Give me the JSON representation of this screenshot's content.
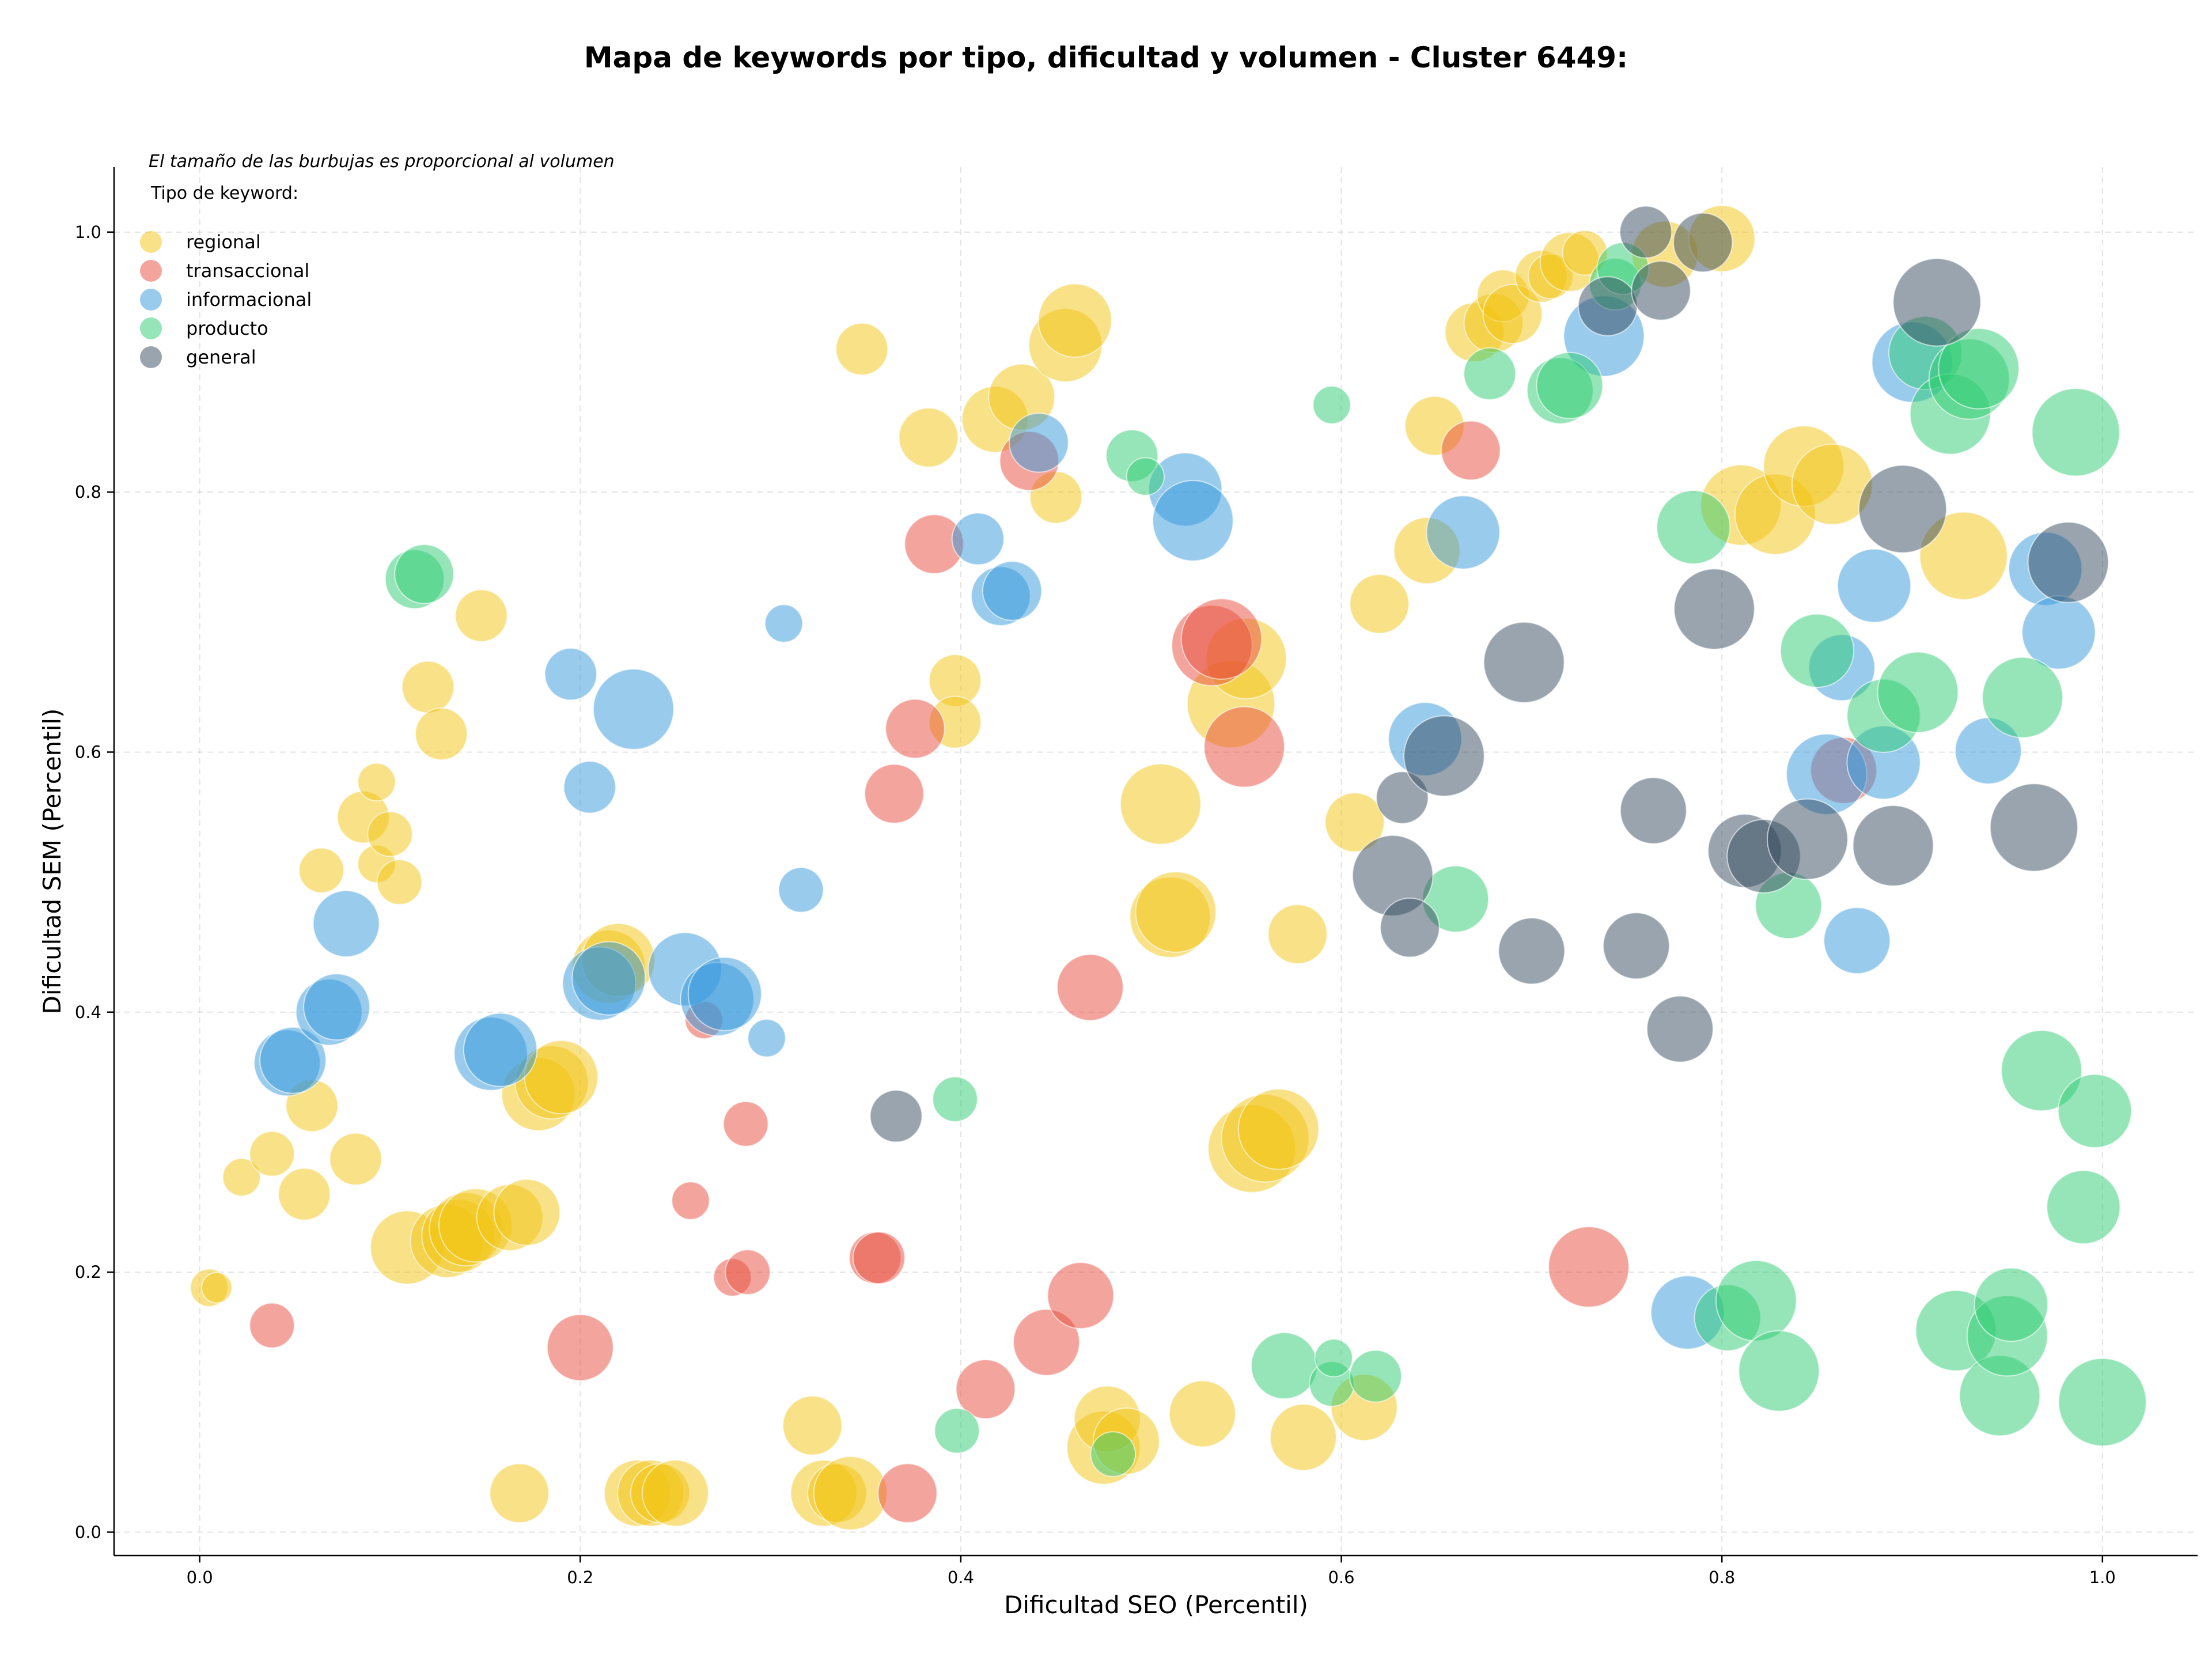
{
  "chart_data": {
    "type": "scatter",
    "title": "Mapa de keywords por tipo, dificultad y volumen - Cluster 6449:",
    "xlabel": "Dificultad SEO (Percentil)",
    "ylabel": "Dificultad SEM (Percentil)",
    "xlim": [
      -0.045,
      1.05
    ],
    "ylim": [
      -0.018,
      1.05
    ],
    "x_ticks": [
      0.0,
      0.2,
      0.4,
      0.6,
      0.8,
      1.0
    ],
    "y_ticks": [
      0.0,
      0.2,
      0.4,
      0.6,
      0.8,
      1.0
    ],
    "x_tick_labels": [
      "0.0",
      "0.2",
      "0.4",
      "0.6",
      "0.8",
      "1.0"
    ],
    "y_tick_labels": [
      "0.0",
      "0.2",
      "0.4",
      "0.6",
      "0.8",
      "1.0"
    ],
    "grid": true,
    "annotation": "El tamaño de las burbujas es proporcional al volumen",
    "legend_title": "Tipo de keyword:",
    "legend_position": "top-left",
    "series": [
      {
        "name": "regional",
        "color": "#f1c40f",
        "points": [
          [
            0.005,
            0.188,
            3
          ],
          [
            0.009,
            0.188,
            2
          ],
          [
            0.022,
            0.273,
            3
          ],
          [
            0.038,
            0.291,
            4
          ],
          [
            0.055,
            0.26,
            5
          ],
          [
            0.059,
            0.328,
            5
          ],
          [
            0.064,
            0.509,
            4
          ],
          [
            0.082,
            0.287,
            5
          ],
          [
            0.086,
            0.55,
            5
          ],
          [
            0.093,
            0.577,
            3
          ],
          [
            0.093,
            0.514,
            3
          ],
          [
            0.1,
            0.537,
            4
          ],
          [
            0.105,
            0.5,
            4
          ],
          [
            0.109,
            0.219,
            8
          ],
          [
            0.12,
            0.65,
            5
          ],
          [
            0.127,
            0.614,
            5
          ],
          [
            0.13,
            0.224,
            8
          ],
          [
            0.136,
            0.228,
            8
          ],
          [
            0.14,
            0.233,
            8
          ],
          [
            0.145,
            0.236,
            8
          ],
          [
            0.148,
            0.705,
            5
          ],
          [
            0.163,
            0.242,
            7
          ],
          [
            0.172,
            0.246,
            7
          ],
          [
            0.168,
            0.03,
            6
          ],
          [
            0.178,
            0.337,
            8
          ],
          [
            0.185,
            0.346,
            8
          ],
          [
            0.19,
            0.35,
            8
          ],
          [
            0.215,
            0.435,
            8
          ],
          [
            0.22,
            0.44,
            8
          ],
          [
            0.23,
            0.03,
            7
          ],
          [
            0.237,
            0.03,
            7
          ],
          [
            0.242,
            0.03,
            6
          ],
          [
            0.25,
            0.03,
            7
          ],
          [
            0.322,
            0.082,
            6
          ],
          [
            0.328,
            0.03,
            7
          ],
          [
            0.335,
            0.03,
            6
          ],
          [
            0.342,
            0.03,
            8
          ],
          [
            0.348,
            0.91,
            5
          ],
          [
            0.383,
            0.842,
            6
          ],
          [
            0.397,
            0.655,
            5
          ],
          [
            0.397,
            0.623,
            5
          ],
          [
            0.418,
            0.856,
            7
          ],
          [
            0.432,
            0.873,
            7
          ],
          [
            0.45,
            0.796,
            5
          ],
          [
            0.455,
            0.913,
            8
          ],
          [
            0.46,
            0.932,
            8
          ],
          [
            0.475,
            0.065,
            8
          ],
          [
            0.477,
            0.087,
            7
          ],
          [
            0.487,
            0.07,
            7
          ],
          [
            0.505,
            0.56,
            9
          ],
          [
            0.51,
            0.473,
            9
          ],
          [
            0.513,
            0.477,
            9
          ],
          [
            0.527,
            0.091,
            7
          ],
          [
            0.542,
            0.637,
            10
          ],
          [
            0.55,
            0.672,
            9
          ],
          [
            0.553,
            0.295,
            10
          ],
          [
            0.56,
            0.303,
            10
          ],
          [
            0.567,
            0.31,
            9
          ],
          [
            0.577,
            0.46,
            6
          ],
          [
            0.58,
            0.073,
            7
          ],
          [
            0.607,
            0.546,
            6
          ],
          [
            0.612,
            0.096,
            7
          ],
          [
            0.62,
            0.714,
            6
          ],
          [
            0.645,
            0.755,
            7
          ],
          [
            0.649,
            0.851,
            6
          ],
          [
            0.67,
            0.923,
            6
          ],
          [
            0.68,
            0.93,
            6
          ],
          [
            0.685,
            0.951,
            5
          ],
          [
            0.69,
            0.937,
            6
          ],
          [
            0.705,
            0.966,
            5
          ],
          [
            0.71,
            0.966,
            4
          ],
          [
            0.72,
            0.977,
            6
          ],
          [
            0.728,
            0.984,
            4
          ],
          [
            0.77,
            0.983,
            7
          ],
          [
            0.8,
            0.995,
            7
          ],
          [
            0.81,
            0.79,
            9
          ],
          [
            0.828,
            0.783,
            9
          ],
          [
            0.843,
            0.82,
            9
          ],
          [
            0.858,
            0.806,
            9
          ],
          [
            0.927,
            0.751,
            10
          ]
        ]
      },
      {
        "name": "transaccional",
        "color": "#e74c3c",
        "points": [
          [
            0.038,
            0.159,
            4
          ],
          [
            0.2,
            0.142,
            7
          ],
          [
            0.258,
            0.255,
            3
          ],
          [
            0.265,
            0.394,
            3
          ],
          [
            0.28,
            0.196,
            3
          ],
          [
            0.287,
            0.314,
            4
          ],
          [
            0.288,
            0.2,
            4
          ],
          [
            0.355,
            0.211,
            5
          ],
          [
            0.357,
            0.211,
            5
          ],
          [
            0.365,
            0.568,
            6
          ],
          [
            0.372,
            0.03,
            6
          ],
          [
            0.376,
            0.618,
            6
          ],
          [
            0.386,
            0.76,
            6
          ],
          [
            0.413,
            0.11,
            6
          ],
          [
            0.436,
            0.824,
            6
          ],
          [
            0.445,
            0.146,
            7
          ],
          [
            0.463,
            0.182,
            7
          ],
          [
            0.468,
            0.419,
            7
          ],
          [
            0.532,
            0.682,
            9
          ],
          [
            0.537,
            0.687,
            9
          ],
          [
            0.549,
            0.604,
            9
          ],
          [
            0.668,
            0.832,
            6
          ],
          [
            0.73,
            0.204,
            9
          ],
          [
            0.864,
            0.586,
            7
          ]
        ]
      },
      {
        "name": "informacional",
        "color": "#3498db",
        "points": [
          [
            0.046,
            0.361,
            7
          ],
          [
            0.049,
            0.363,
            7
          ],
          [
            0.068,
            0.4,
            7
          ],
          [
            0.072,
            0.404,
            7
          ],
          [
            0.077,
            0.468,
            7
          ],
          [
            0.153,
            0.368,
            8
          ],
          [
            0.158,
            0.371,
            8
          ],
          [
            0.195,
            0.66,
            5
          ],
          [
            0.205,
            0.573,
            5
          ],
          [
            0.21,
            0.422,
            8
          ],
          [
            0.215,
            0.426,
            8
          ],
          [
            0.228,
            0.633,
            9
          ],
          [
            0.255,
            0.433,
            8
          ],
          [
            0.272,
            0.41,
            8
          ],
          [
            0.276,
            0.414,
            8
          ],
          [
            0.298,
            0.38,
            3
          ],
          [
            0.307,
            0.699,
            3
          ],
          [
            0.316,
            0.494,
            4
          ],
          [
            0.409,
            0.764,
            5
          ],
          [
            0.421,
            0.72,
            6
          ],
          [
            0.427,
            0.724,
            6
          ],
          [
            0.441,
            0.838,
            6
          ],
          [
            0.518,
            0.802,
            8
          ],
          [
            0.522,
            0.778,
            9
          ],
          [
            0.644,
            0.61,
            8
          ],
          [
            0.664,
            0.769,
            8
          ],
          [
            0.738,
            0.92,
            9
          ],
          [
            0.782,
            0.169,
            8
          ],
          [
            0.855,
            0.583,
            9
          ],
          [
            0.863,
            0.665,
            7
          ],
          [
            0.871,
            0.455,
            7
          ],
          [
            0.88,
            0.728,
            8
          ],
          [
            0.885,
            0.592,
            8
          ],
          [
            0.9,
            0.9,
            9
          ],
          [
            0.94,
            0.601,
            7
          ],
          [
            0.97,
            0.741,
            8
          ],
          [
            0.977,
            0.692,
            8
          ]
        ]
      },
      {
        "name": "producto",
        "color": "#2ecc71",
        "points": [
          [
            0.113,
            0.733,
            6
          ],
          [
            0.118,
            0.737,
            6
          ],
          [
            0.397,
            0.333,
            4
          ],
          [
            0.398,
            0.078,
            4
          ],
          [
            0.48,
            0.06,
            4
          ],
          [
            0.49,
            0.828,
            5
          ],
          [
            0.497,
            0.812,
            3
          ],
          [
            0.57,
            0.128,
            7
          ],
          [
            0.595,
            0.114,
            4
          ],
          [
            0.596,
            0.134,
            3
          ],
          [
            0.595,
            0.867,
            3
          ],
          [
            0.618,
            0.12,
            5
          ],
          [
            0.66,
            0.487,
            7
          ],
          [
            0.678,
            0.891,
            5
          ],
          [
            0.715,
            0.878,
            7
          ],
          [
            0.72,
            0.882,
            7
          ],
          [
            0.744,
            0.96,
            5
          ],
          [
            0.748,
            0.972,
            5
          ],
          [
            0.785,
            0.773,
            8
          ],
          [
            0.803,
            0.165,
            7
          ],
          [
            0.818,
            0.178,
            9
          ],
          [
            0.83,
            0.124,
            9
          ],
          [
            0.835,
            0.482,
            7
          ],
          [
            0.85,
            0.678,
            8
          ],
          [
            0.885,
            0.628,
            8
          ],
          [
            0.903,
            0.646,
            9
          ],
          [
            0.907,
            0.907,
            8
          ],
          [
            0.92,
            0.86,
            9
          ],
          [
            0.923,
            0.155,
            9
          ],
          [
            0.93,
            0.887,
            9
          ],
          [
            0.935,
            0.895,
            9
          ],
          [
            0.946,
            0.105,
            9
          ],
          [
            0.95,
            0.151,
            9
          ],
          [
            0.952,
            0.175,
            8
          ],
          [
            0.958,
            0.642,
            9
          ],
          [
            0.968,
            0.355,
            9
          ],
          [
            0.986,
            0.846,
            10
          ],
          [
            0.99,
            0.25,
            8
          ],
          [
            0.996,
            0.324,
            8
          ],
          [
            1.0,
            0.1,
            10
          ]
        ]
      },
      {
        "name": "general",
        "color": "#34495e",
        "points": [
          [
            0.366,
            0.32,
            5
          ],
          [
            0.627,
            0.505,
            9
          ],
          [
            0.632,
            0.565,
            5
          ],
          [
            0.636,
            0.465,
            6
          ],
          [
            0.654,
            0.597,
            9
          ],
          [
            0.696,
            0.669,
            9
          ],
          [
            0.7,
            0.447,
            7
          ],
          [
            0.74,
            0.943,
            6
          ],
          [
            0.755,
            0.451,
            7
          ],
          [
            0.76,
            1.0,
            5
          ],
          [
            0.764,
            0.555,
            7
          ],
          [
            0.768,
            0.955,
            6
          ],
          [
            0.778,
            0.387,
            7
          ],
          [
            0.79,
            0.992,
            6
          ],
          [
            0.796,
            0.71,
            9
          ],
          [
            0.812,
            0.524,
            8
          ],
          [
            0.822,
            0.52,
            8
          ],
          [
            0.845,
            0.533,
            9
          ],
          [
            0.89,
            0.528,
            9
          ],
          [
            0.895,
            0.787,
            10
          ],
          [
            0.913,
            0.946,
            10
          ],
          [
            0.964,
            0.542,
            10
          ],
          [
            0.982,
            0.746,
            9
          ]
        ]
      }
    ]
  }
}
